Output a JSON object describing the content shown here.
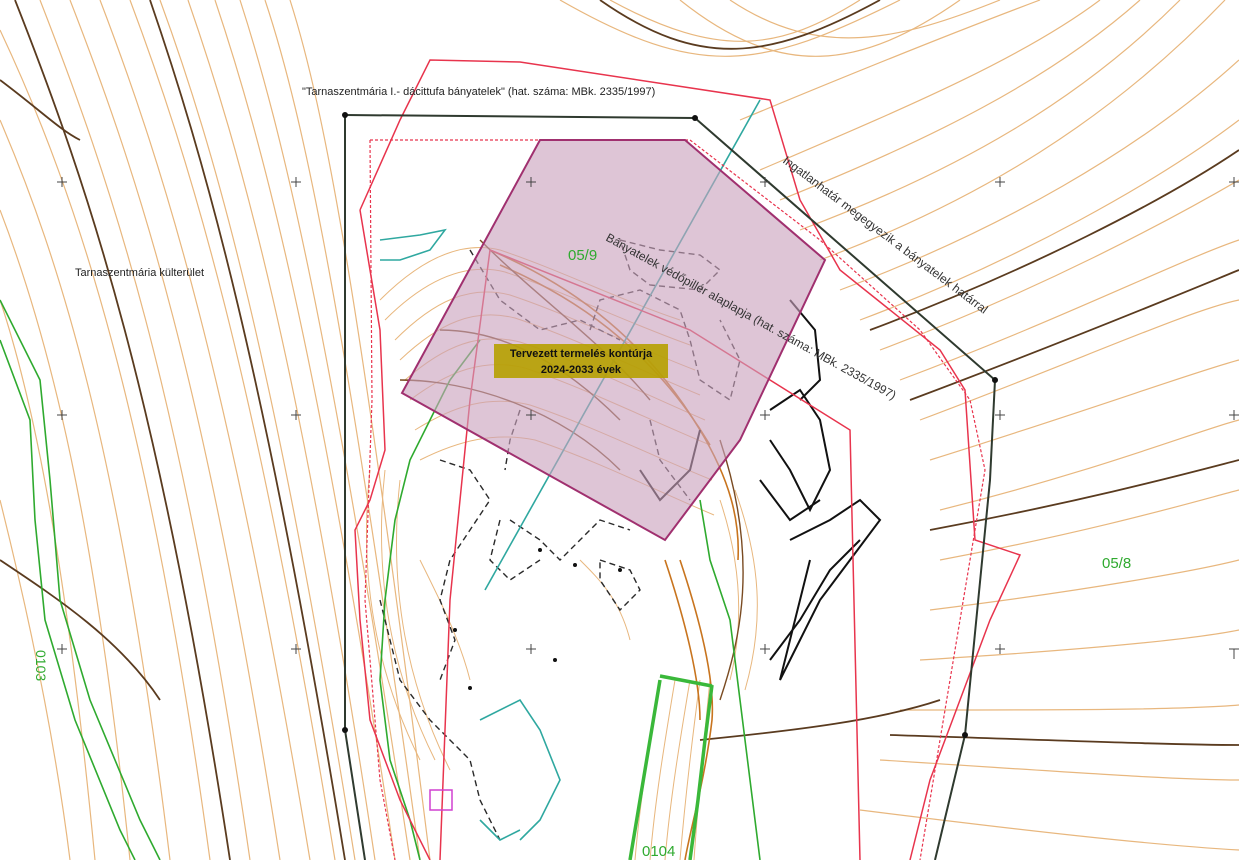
{
  "labels": {
    "mine_plot_title": "\"Tarnaszentmária I.- dácittufa bányatelek\" (hat. száma: MBk. 2335/1997)",
    "outer_area": "Tarnaszentmária külterület",
    "boundary_note": "Ingatlanhatár megegyezik a bányatelek határral",
    "protection_pillar": "Bányatelek védőpillér alaplapja (hat. száma: MBk. 2335/1997)",
    "parcel_05_9": "05/9",
    "parcel_05_8": "05/8",
    "parcel_0103": "0103",
    "parcel_0104": "0104",
    "planned_contour_line1": "Tervezett termelés kontúrja",
    "planned_contour_line2": "2024-2033 évek"
  },
  "colors": {
    "contour_light": "#e8b77e",
    "contour_dark": "#5a3b1f",
    "mine_boundary": "#2f3a2f",
    "property_line": "#e8344d",
    "parcel_green": "#2faa2f",
    "planned_fill": "#c9a2bd",
    "planned_stroke": "#a0306f",
    "label_box": "#b6a000",
    "section_line": "#2fa8a0"
  },
  "icons": [
    "grid-cross-icon",
    "survey-point-icon"
  ]
}
